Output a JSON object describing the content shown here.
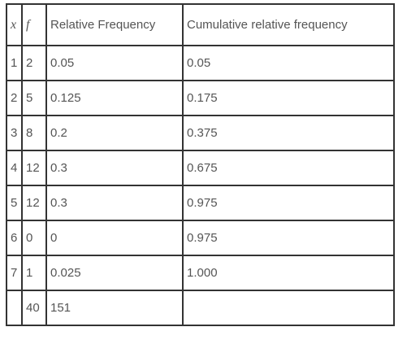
{
  "table": {
    "headers": [
      "x",
      "f",
      "Relative Frequency",
      "Cumulative relative frequency"
    ],
    "rows": [
      [
        "1",
        "2",
        "0.05",
        "0.05"
      ],
      [
        "2",
        "5",
        "0.125",
        "0.175"
      ],
      [
        "3",
        "8",
        "0.2",
        "0.375"
      ],
      [
        "4",
        "12",
        "0.3",
        "0.675"
      ],
      [
        "5",
        "12",
        "0.3",
        "0.975"
      ],
      [
        "6",
        "0",
        "0",
        "0.975"
      ],
      [
        "7",
        "1",
        "0.025",
        "1.000"
      ],
      [
        "",
        "40",
        "151",
        ""
      ]
    ]
  }
}
